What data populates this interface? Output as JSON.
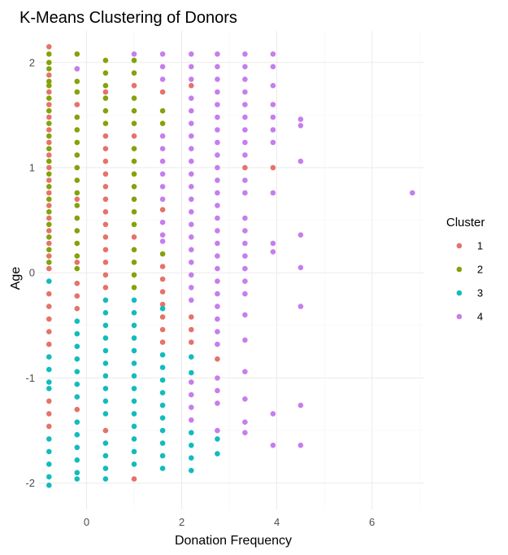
{
  "chart_data": {
    "type": "scatter",
    "title": "K-Means Clustering of Donors",
    "xlabel": "Donation Frequency",
    "ylabel": "Age",
    "xlim": [
      -1.0,
      7.1
    ],
    "ylim": [
      -2.25,
      2.3
    ],
    "x_ticks": [
      0,
      2,
      4,
      6
    ],
    "x_tick_labels": [
      "0",
      "2",
      "4",
      "6"
    ],
    "y_ticks": [
      -2,
      -1,
      0,
      1,
      2
    ],
    "y_tick_labels": [
      "-2",
      "-1",
      "0",
      "1",
      "2"
    ],
    "grid": true,
    "legend": {
      "title": "Cluster",
      "position": "right",
      "entries": [
        "1",
        "2",
        "3",
        "4"
      ]
    },
    "colors": {
      "1": "#E4736A",
      "2": "#84A20A",
      "3": "#13BBBD",
      "4": "#C57EEE"
    },
    "series": [
      {
        "name": "1",
        "points": [
          [
            -0.79,
            2.15
          ],
          [
            -0.79,
            1.88
          ],
          [
            -0.79,
            1.72
          ],
          [
            -0.79,
            1.6
          ],
          [
            -0.79,
            1.48
          ],
          [
            -0.79,
            1.36
          ],
          [
            -0.79,
            1.24
          ],
          [
            -0.79,
            1.12
          ],
          [
            -0.79,
            1.0
          ],
          [
            -0.79,
            0.88
          ],
          [
            -0.79,
            0.76
          ],
          [
            -0.79,
            0.64
          ],
          [
            -0.79,
            0.52
          ],
          [
            -0.79,
            0.4
          ],
          [
            -0.79,
            0.28
          ],
          [
            -0.79,
            0.16
          ],
          [
            -0.79,
            0.04
          ],
          [
            -0.79,
            -0.2
          ],
          [
            -0.79,
            -0.32
          ],
          [
            -0.79,
            -0.44
          ],
          [
            -0.79,
            -0.56
          ],
          [
            -0.79,
            -0.68
          ],
          [
            -0.79,
            -1.22
          ],
          [
            -0.79,
            -1.34
          ],
          [
            -0.79,
            -1.46
          ],
          [
            -0.2,
            1.94
          ],
          [
            -0.2,
            1.6
          ],
          [
            -0.2,
            0.7
          ],
          [
            -0.2,
            0.1
          ],
          [
            -0.2,
            -0.1
          ],
          [
            -0.2,
            -0.22
          ],
          [
            -0.2,
            -0.34
          ],
          [
            -0.2,
            -1.3
          ],
          [
            0.4,
            1.72
          ],
          [
            0.4,
            1.3
          ],
          [
            0.4,
            1.18
          ],
          [
            0.4,
            1.06
          ],
          [
            0.4,
            0.94
          ],
          [
            0.4,
            0.82
          ],
          [
            0.4,
            0.7
          ],
          [
            0.4,
            0.58
          ],
          [
            0.4,
            0.46
          ],
          [
            0.4,
            0.34
          ],
          [
            0.4,
            0.22
          ],
          [
            0.4,
            0.1
          ],
          [
            0.4,
            -0.02
          ],
          [
            0.4,
            -0.14
          ],
          [
            0.4,
            -1.5
          ],
          [
            1.0,
            1.78
          ],
          [
            1.0,
            1.3
          ],
          [
            1.0,
            0.34
          ],
          [
            1.0,
            -1.96
          ],
          [
            1.6,
            1.72
          ],
          [
            1.6,
            0.6
          ],
          [
            1.6,
            0.06
          ],
          [
            1.6,
            -0.06
          ],
          [
            1.6,
            -0.18
          ],
          [
            1.6,
            -0.3
          ],
          [
            1.6,
            -0.42
          ],
          [
            1.6,
            -0.54
          ],
          [
            1.6,
            -0.66
          ],
          [
            2.2,
            1.78
          ],
          [
            2.2,
            -0.42
          ],
          [
            2.2,
            -0.54
          ],
          [
            2.2,
            -0.66
          ],
          [
            2.75,
            -0.82
          ],
          [
            3.33,
            1.0
          ],
          [
            3.92,
            1.0
          ]
        ]
      },
      {
        "name": "2",
        "points": [
          [
            -0.79,
            2.08
          ],
          [
            -0.79,
            2.0
          ],
          [
            -0.79,
            1.94
          ],
          [
            -0.79,
            1.82
          ],
          [
            -0.79,
            1.78
          ],
          [
            -0.79,
            1.66
          ],
          [
            -0.79,
            1.54
          ],
          [
            -0.79,
            1.42
          ],
          [
            -0.79,
            1.3
          ],
          [
            -0.79,
            1.18
          ],
          [
            -0.79,
            1.06
          ],
          [
            -0.79,
            0.94
          ],
          [
            -0.79,
            0.82
          ],
          [
            -0.79,
            0.7
          ],
          [
            -0.79,
            0.58
          ],
          [
            -0.79,
            0.46
          ],
          [
            -0.79,
            0.34
          ],
          [
            -0.79,
            0.22
          ],
          [
            -0.79,
            0.1
          ],
          [
            -0.2,
            2.08
          ],
          [
            -0.2,
            1.82
          ],
          [
            -0.2,
            1.72
          ],
          [
            -0.2,
            1.48
          ],
          [
            -0.2,
            1.36
          ],
          [
            -0.2,
            1.24
          ],
          [
            -0.2,
            1.12
          ],
          [
            -0.2,
            1.0
          ],
          [
            -0.2,
            0.88
          ],
          [
            -0.2,
            0.76
          ],
          [
            -0.2,
            0.64
          ],
          [
            -0.2,
            0.52
          ],
          [
            -0.2,
            0.4
          ],
          [
            -0.2,
            0.28
          ],
          [
            -0.2,
            0.16
          ],
          [
            -0.2,
            0.04
          ],
          [
            0.4,
            2.02
          ],
          [
            0.4,
            1.9
          ],
          [
            0.4,
            1.78
          ],
          [
            0.4,
            1.66
          ],
          [
            0.4,
            1.54
          ],
          [
            0.4,
            1.42
          ],
          [
            1.0,
            2.02
          ],
          [
            1.0,
            1.9
          ],
          [
            1.0,
            1.66
          ],
          [
            1.0,
            1.54
          ],
          [
            1.0,
            1.42
          ],
          [
            1.0,
            1.18
          ],
          [
            1.0,
            1.06
          ],
          [
            1.0,
            0.94
          ],
          [
            1.0,
            0.82
          ],
          [
            1.0,
            0.7
          ],
          [
            1.0,
            0.58
          ],
          [
            1.0,
            0.46
          ],
          [
            1.0,
            0.22
          ],
          [
            1.0,
            0.1
          ],
          [
            1.0,
            -0.02
          ],
          [
            1.0,
            -0.14
          ],
          [
            1.6,
            1.54
          ],
          [
            1.6,
            1.42
          ],
          [
            1.6,
            0.18
          ]
        ]
      },
      {
        "name": "3",
        "points": [
          [
            -0.79,
            -0.08
          ],
          [
            -0.79,
            -0.8
          ],
          [
            -0.79,
            -0.92
          ],
          [
            -0.79,
            -1.04
          ],
          [
            -0.79,
            -1.1
          ],
          [
            -0.79,
            -1.58
          ],
          [
            -0.79,
            -1.7
          ],
          [
            -0.79,
            -1.82
          ],
          [
            -0.79,
            -1.94
          ],
          [
            -0.79,
            -2.02
          ],
          [
            -0.2,
            -0.46
          ],
          [
            -0.2,
            -0.58
          ],
          [
            -0.2,
            -0.7
          ],
          [
            -0.2,
            -0.82
          ],
          [
            -0.2,
            -0.94
          ],
          [
            -0.2,
            -1.06
          ],
          [
            -0.2,
            -1.18
          ],
          [
            -0.2,
            -1.42
          ],
          [
            -0.2,
            -1.54
          ],
          [
            -0.2,
            -1.66
          ],
          [
            -0.2,
            -1.78
          ],
          [
            -0.2,
            -1.9
          ],
          [
            -0.2,
            -1.96
          ],
          [
            0.4,
            -0.26
          ],
          [
            0.4,
            -0.38
          ],
          [
            0.4,
            -0.5
          ],
          [
            0.4,
            -0.62
          ],
          [
            0.4,
            -0.74
          ],
          [
            0.4,
            -0.86
          ],
          [
            0.4,
            -0.98
          ],
          [
            0.4,
            -1.1
          ],
          [
            0.4,
            -1.22
          ],
          [
            0.4,
            -1.34
          ],
          [
            0.4,
            -1.62
          ],
          [
            0.4,
            -1.74
          ],
          [
            0.4,
            -1.86
          ],
          [
            0.4,
            -1.96
          ],
          [
            1.0,
            -0.26
          ],
          [
            1.0,
            -0.38
          ],
          [
            1.0,
            -0.5
          ],
          [
            1.0,
            -0.62
          ],
          [
            1.0,
            -0.74
          ],
          [
            1.0,
            -0.86
          ],
          [
            1.0,
            -0.98
          ],
          [
            1.0,
            -1.1
          ],
          [
            1.0,
            -1.22
          ],
          [
            1.0,
            -1.34
          ],
          [
            1.0,
            -1.46
          ],
          [
            1.0,
            -1.58
          ],
          [
            1.0,
            -1.7
          ],
          [
            1.0,
            -1.82
          ],
          [
            1.6,
            -0.34
          ],
          [
            1.6,
            -0.78
          ],
          [
            1.6,
            -0.9
          ],
          [
            1.6,
            -1.02
          ],
          [
            1.6,
            -1.14
          ],
          [
            1.6,
            -1.26
          ],
          [
            1.6,
            -1.38
          ],
          [
            1.6,
            -1.5
          ],
          [
            1.6,
            -1.62
          ],
          [
            1.6,
            -1.74
          ],
          [
            1.6,
            -1.86
          ],
          [
            2.2,
            -0.8
          ],
          [
            2.2,
            -0.95
          ],
          [
            2.2,
            -1.52
          ],
          [
            2.2,
            -1.64
          ],
          [
            2.2,
            -1.76
          ],
          [
            2.2,
            -1.88
          ],
          [
            2.75,
            -1.58
          ],
          [
            2.75,
            -1.72
          ]
        ]
      },
      {
        "name": "4",
        "points": [
          [
            -0.2,
            1.94
          ],
          [
            1.0,
            2.08
          ],
          [
            1.6,
            2.08
          ],
          [
            1.6,
            1.96
          ],
          [
            1.6,
            1.84
          ],
          [
            1.6,
            1.3
          ],
          [
            1.6,
            1.18
          ],
          [
            1.6,
            1.06
          ],
          [
            1.6,
            0.94
          ],
          [
            1.6,
            0.82
          ],
          [
            1.6,
            0.7
          ],
          [
            1.6,
            0.48
          ],
          [
            1.6,
            0.36
          ],
          [
            1.6,
            0.3
          ],
          [
            2.2,
            2.08
          ],
          [
            2.2,
            1.96
          ],
          [
            2.2,
            1.84
          ],
          [
            2.2,
            1.66
          ],
          [
            2.2,
            1.54
          ],
          [
            2.2,
            1.42
          ],
          [
            2.2,
            1.3
          ],
          [
            2.2,
            1.18
          ],
          [
            2.2,
            1.06
          ],
          [
            2.2,
            0.94
          ],
          [
            2.2,
            0.82
          ],
          [
            2.2,
            0.7
          ],
          [
            2.2,
            0.58
          ],
          [
            2.2,
            0.46
          ],
          [
            2.2,
            0.34
          ],
          [
            2.2,
            0.22
          ],
          [
            2.2,
            0.1
          ],
          [
            2.2,
            -0.02
          ],
          [
            2.2,
            -0.14
          ],
          [
            2.2,
            -0.26
          ],
          [
            2.2,
            -1.04
          ],
          [
            2.2,
            -1.16
          ],
          [
            2.2,
            -1.28
          ],
          [
            2.2,
            -1.4
          ],
          [
            2.75,
            2.08
          ],
          [
            2.75,
            1.96
          ],
          [
            2.75,
            1.84
          ],
          [
            2.75,
            1.72
          ],
          [
            2.75,
            1.6
          ],
          [
            2.75,
            1.48
          ],
          [
            2.75,
            1.36
          ],
          [
            2.75,
            1.24
          ],
          [
            2.75,
            1.12
          ],
          [
            2.75,
            1.0
          ],
          [
            2.75,
            0.88
          ],
          [
            2.75,
            0.76
          ],
          [
            2.75,
            0.64
          ],
          [
            2.75,
            0.52
          ],
          [
            2.75,
            0.4
          ],
          [
            2.75,
            0.28
          ],
          [
            2.75,
            0.16
          ],
          [
            2.75,
            0.04
          ],
          [
            2.75,
            -0.08
          ],
          [
            2.75,
            -0.2
          ],
          [
            2.75,
            -0.32
          ],
          [
            2.75,
            -0.44
          ],
          [
            2.75,
            -0.56
          ],
          [
            2.75,
            -0.68
          ],
          [
            2.75,
            -1.0
          ],
          [
            2.75,
            -1.12
          ],
          [
            2.75,
            -1.24
          ],
          [
            2.75,
            -1.5
          ],
          [
            3.33,
            2.08
          ],
          [
            3.33,
            1.96
          ],
          [
            3.33,
            1.84
          ],
          [
            3.33,
            1.72
          ],
          [
            3.33,
            1.6
          ],
          [
            3.33,
            1.48
          ],
          [
            3.33,
            1.36
          ],
          [
            3.33,
            1.24
          ],
          [
            3.33,
            1.12
          ],
          [
            3.33,
            0.88
          ],
          [
            3.33,
            0.76
          ],
          [
            3.33,
            0.52
          ],
          [
            3.33,
            0.4
          ],
          [
            3.33,
            0.28
          ],
          [
            3.33,
            0.16
          ],
          [
            3.33,
            0.04
          ],
          [
            3.33,
            -0.08
          ],
          [
            3.33,
            -0.2
          ],
          [
            3.33,
            -0.4
          ],
          [
            3.33,
            -0.64
          ],
          [
            3.33,
            -0.94
          ],
          [
            3.33,
            -1.2
          ],
          [
            3.33,
            -1.42
          ],
          [
            3.33,
            -1.52
          ],
          [
            3.92,
            2.08
          ],
          [
            3.92,
            1.96
          ],
          [
            3.92,
            1.78
          ],
          [
            3.92,
            1.6
          ],
          [
            3.92,
            1.48
          ],
          [
            3.92,
            1.36
          ],
          [
            3.92,
            1.24
          ],
          [
            3.92,
            0.76
          ],
          [
            3.92,
            0.28
          ],
          [
            3.92,
            0.2
          ],
          [
            3.92,
            -1.34
          ],
          [
            3.92,
            -1.64
          ],
          [
            4.5,
            1.46
          ],
          [
            4.5,
            1.4
          ],
          [
            4.5,
            1.06
          ],
          [
            4.5,
            0.36
          ],
          [
            4.5,
            0.05
          ],
          [
            4.5,
            -0.32
          ],
          [
            4.5,
            -1.26
          ],
          [
            4.5,
            -1.64
          ],
          [
            6.85,
            0.76
          ]
        ]
      }
    ]
  }
}
